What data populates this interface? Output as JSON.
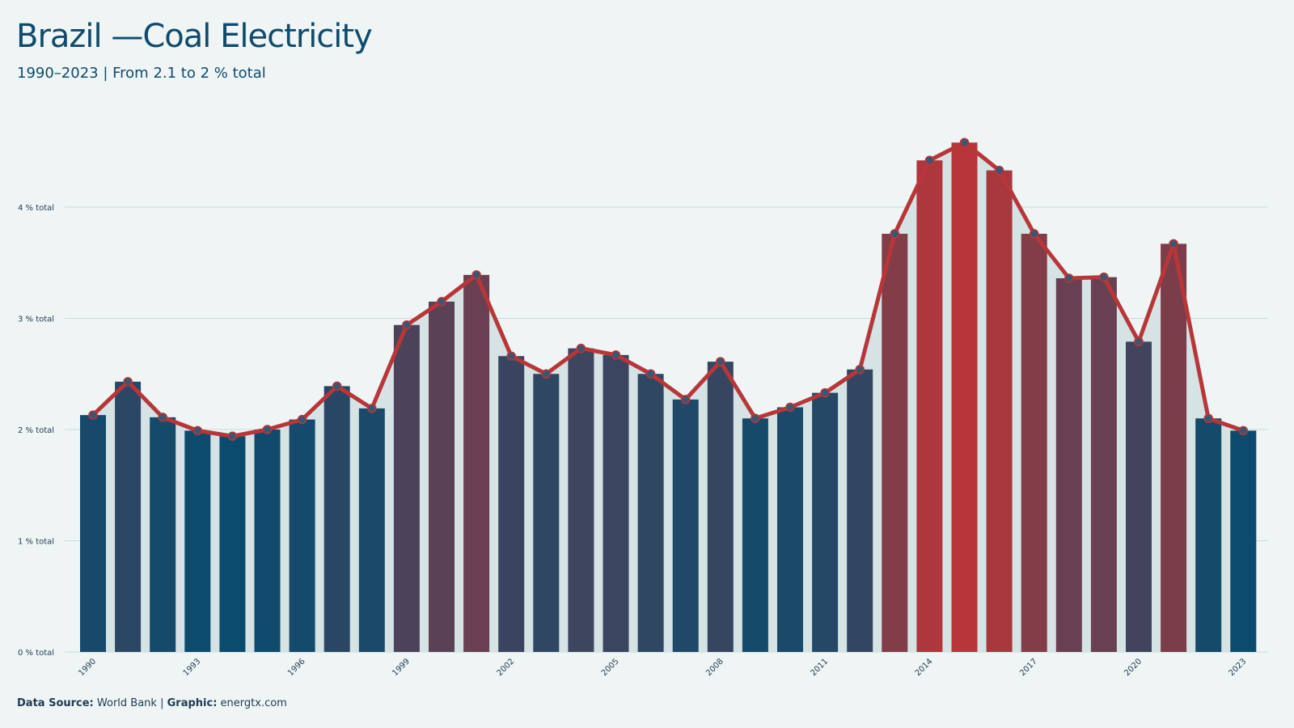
{
  "chart_data": {
    "type": "bar",
    "title": "Brazil —Coal Electricity",
    "subtitle": "1990–2023 | From 2.1 to 2 % total",
    "unit": "% total",
    "ylim": [
      0,
      4.7
    ],
    "yticks": [
      0,
      1,
      2,
      3,
      4
    ],
    "ytick_labels": [
      "0 % total",
      "1 % total",
      "2 % total",
      "3 % total",
      "4 % total"
    ],
    "xtick_labels": [
      "1990",
      "1993",
      "1996",
      "1999",
      "2002",
      "2005",
      "2008",
      "2011",
      "2014",
      "2017",
      "2020",
      "2023"
    ],
    "grid": true,
    "x": [
      1990,
      1991,
      1992,
      1993,
      1994,
      1995,
      1996,
      1997,
      1998,
      1999,
      2000,
      2001,
      2002,
      2003,
      2004,
      2005,
      2006,
      2007,
      2008,
      2009,
      2010,
      2011,
      2012,
      2013,
      2014,
      2015,
      2016,
      2017,
      2018,
      2019,
      2020,
      2021,
      2022,
      2023
    ],
    "values": [
      2.13,
      2.43,
      2.11,
      1.99,
      1.94,
      2.0,
      2.09,
      2.39,
      2.19,
      2.94,
      3.15,
      3.39,
      2.66,
      2.5,
      2.73,
      2.67,
      2.5,
      2.27,
      2.61,
      2.1,
      2.2,
      2.33,
      2.54,
      3.76,
      4.42,
      4.58,
      4.33,
      3.76,
      3.36,
      3.37,
      2.79,
      3.67,
      2.1,
      1.99
    ]
  },
  "colors": {
    "low": "#0a4b6e",
    "high": "#b83639",
    "line": "#b83639",
    "marker": "#3e5570",
    "area": "#d5e3e5",
    "grid": "#c9d8da",
    "text": "#104a6c",
    "background": "#eff5f5"
  },
  "footer": {
    "source_label": "Data Source:",
    "source_value": "World Bank",
    "graphic_label": "Graphic:",
    "graphic_value": "energtx.com"
  }
}
